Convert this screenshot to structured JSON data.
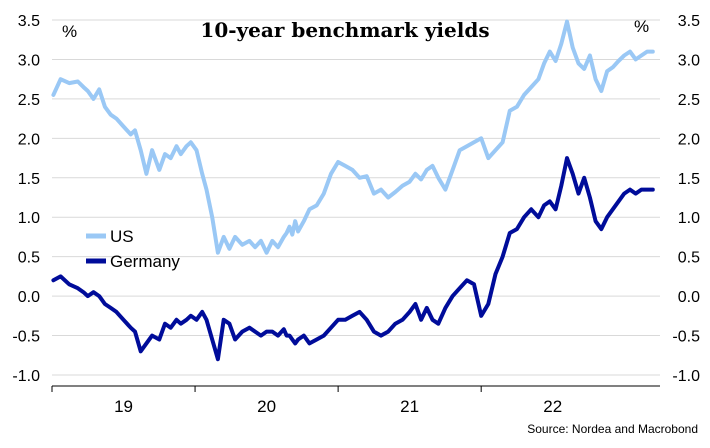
{
  "chart_data": {
    "type": "line",
    "title": "10-year benchmark yields",
    "unit_left": "%",
    "unit_right": "%",
    "source": "Source: Nordea and Macrobond",
    "ylim": [
      -1.0,
      3.5
    ],
    "yticks": [
      "3.5",
      "3.0",
      "2.5",
      "2.0",
      "1.5",
      "1.0",
      "0.5",
      "0.0",
      "-0.5",
      "-1.0"
    ],
    "xlim": [
      2018.5,
      2022.75
    ],
    "xticks": [
      {
        "label": "19",
        "x": 2019.0
      },
      {
        "label": "20",
        "x": 2020.0
      },
      {
        "label": "21",
        "x": 2021.0
      },
      {
        "label": "22",
        "x": 2022.0
      }
    ],
    "grid": true,
    "legend": "middle-left",
    "colors": {
      "us": "#9ac8f5",
      "germany": "#000c9a"
    },
    "series": [
      {
        "name": "US",
        "color": "#9ac8f5",
        "x": [
          2018.51,
          2018.56,
          2018.62,
          2018.68,
          2018.72,
          2018.75,
          2018.79,
          2018.83,
          2018.87,
          2018.91,
          2018.95,
          2019.0,
          2019.05,
          2019.08,
          2019.12,
          2019.16,
          2019.2,
          2019.25,
          2019.29,
          2019.33,
          2019.37,
          2019.4,
          2019.44,
          2019.47,
          2019.51,
          2019.55,
          2019.58,
          2019.62,
          2019.66,
          2019.7,
          2019.74,
          2019.78,
          2019.83,
          2019.88,
          2019.92,
          2019.96,
          2020.0,
          2020.04,
          2020.08,
          2020.12,
          2020.14,
          2020.16,
          2020.18,
          2020.2,
          2020.22,
          2020.26,
          2020.3,
          2020.35,
          2020.4,
          2020.45,
          2020.5,
          2020.55,
          2020.6,
          2020.65,
          2020.7,
          2020.75,
          2020.8,
          2020.85,
          2020.9,
          2020.95,
          2021.0,
          2021.04,
          2021.08,
          2021.12,
          2021.16,
          2021.2,
          2021.25,
          2021.3,
          2021.35,
          2021.4,
          2021.45,
          2021.5,
          2021.55,
          2021.6,
          2021.65,
          2021.7,
          2021.75,
          2021.8,
          2021.85,
          2021.9,
          2021.94,
          2021.98,
          2022.02,
          2022.06,
          2022.1,
          2022.14,
          2022.18,
          2022.22,
          2022.26,
          2022.3,
          2022.34,
          2022.38,
          2022.42,
          2022.46,
          2022.5,
          2022.54,
          2022.58,
          2022.62,
          2022.66,
          2022.7
        ],
        "values": [
          2.55,
          2.75,
          2.7,
          2.72,
          2.65,
          2.6,
          2.5,
          2.62,
          2.4,
          2.3,
          2.25,
          2.15,
          2.05,
          2.1,
          1.85,
          1.55,
          1.85,
          1.6,
          1.8,
          1.75,
          1.9,
          1.8,
          1.9,
          1.95,
          1.85,
          1.55,
          1.35,
          1.0,
          0.55,
          0.75,
          0.6,
          0.75,
          0.65,
          0.7,
          0.62,
          0.7,
          0.55,
          0.7,
          0.62,
          0.75,
          0.8,
          0.88,
          0.78,
          0.95,
          0.82,
          0.95,
          1.1,
          1.15,
          1.3,
          1.55,
          1.7,
          1.65,
          1.6,
          1.5,
          1.52,
          1.3,
          1.35,
          1.25,
          1.32,
          1.4,
          1.45,
          1.55,
          1.48,
          1.6,
          1.65,
          1.5,
          1.35,
          1.6,
          1.85,
          1.9,
          1.95,
          2.0,
          1.75,
          1.85,
          1.95,
          2.35,
          2.4,
          2.55,
          2.65,
          2.75,
          2.95,
          3.1,
          2.98,
          3.2,
          3.48,
          3.15,
          2.95,
          2.88,
          3.05,
          2.75,
          2.6,
          2.85,
          2.9,
          2.98,
          3.05,
          3.1,
          3.0,
          3.05,
          3.1,
          3.1
        ]
      },
      {
        "name": "Germany",
        "color": "#000c9a",
        "x": [
          2018.51,
          2018.56,
          2018.62,
          2018.68,
          2018.72,
          2018.75,
          2018.79,
          2018.83,
          2018.87,
          2018.91,
          2018.95,
          2019.0,
          2019.05,
          2019.08,
          2019.12,
          2019.16,
          2019.2,
          2019.25,
          2019.29,
          2019.33,
          2019.37,
          2019.4,
          2019.44,
          2019.47,
          2019.51,
          2019.55,
          2019.58,
          2019.62,
          2019.66,
          2019.7,
          2019.74,
          2019.78,
          2019.83,
          2019.88,
          2019.92,
          2019.96,
          2020.0,
          2020.04,
          2020.08,
          2020.12,
          2020.14,
          2020.16,
          2020.18,
          2020.2,
          2020.22,
          2020.26,
          2020.3,
          2020.35,
          2020.4,
          2020.45,
          2020.5,
          2020.55,
          2020.6,
          2020.65,
          2020.7,
          2020.75,
          2020.8,
          2020.85,
          2020.9,
          2020.95,
          2021.0,
          2021.04,
          2021.08,
          2021.12,
          2021.16,
          2021.2,
          2021.25,
          2021.3,
          2021.35,
          2021.4,
          2021.45,
          2021.5,
          2021.55,
          2021.6,
          2021.65,
          2021.7,
          2021.75,
          2021.8,
          2021.85,
          2021.9,
          2021.94,
          2021.98,
          2022.02,
          2022.06,
          2022.1,
          2022.14,
          2022.18,
          2022.22,
          2022.26,
          2022.3,
          2022.34,
          2022.38,
          2022.42,
          2022.46,
          2022.5,
          2022.54,
          2022.58,
          2022.62,
          2022.66,
          2022.7
        ],
        "values": [
          0.2,
          0.25,
          0.15,
          0.1,
          0.05,
          0.0,
          0.05,
          0.0,
          -0.1,
          -0.15,
          -0.2,
          -0.3,
          -0.4,
          -0.45,
          -0.7,
          -0.6,
          -0.5,
          -0.55,
          -0.35,
          -0.4,
          -0.3,
          -0.35,
          -0.3,
          -0.25,
          -0.3,
          -0.2,
          -0.3,
          -0.55,
          -0.8,
          -0.3,
          -0.35,
          -0.55,
          -0.45,
          -0.4,
          -0.45,
          -0.5,
          -0.45,
          -0.45,
          -0.5,
          -0.42,
          -0.5,
          -0.5,
          -0.55,
          -0.6,
          -0.55,
          -0.5,
          -0.6,
          -0.55,
          -0.5,
          -0.4,
          -0.3,
          -0.3,
          -0.25,
          -0.2,
          -0.3,
          -0.45,
          -0.5,
          -0.45,
          -0.35,
          -0.3,
          -0.2,
          -0.1,
          -0.3,
          -0.15,
          -0.3,
          -0.35,
          -0.15,
          0.0,
          0.1,
          0.2,
          0.15,
          -0.25,
          -0.1,
          0.28,
          0.5,
          0.8,
          0.85,
          1.0,
          1.1,
          1.0,
          1.15,
          1.2,
          1.1,
          1.4,
          1.75,
          1.55,
          1.3,
          1.5,
          1.25,
          0.95,
          0.85,
          1.0,
          1.1,
          1.2,
          1.3,
          1.35,
          1.3,
          1.35,
          1.35,
          1.35
        ]
      }
    ]
  }
}
